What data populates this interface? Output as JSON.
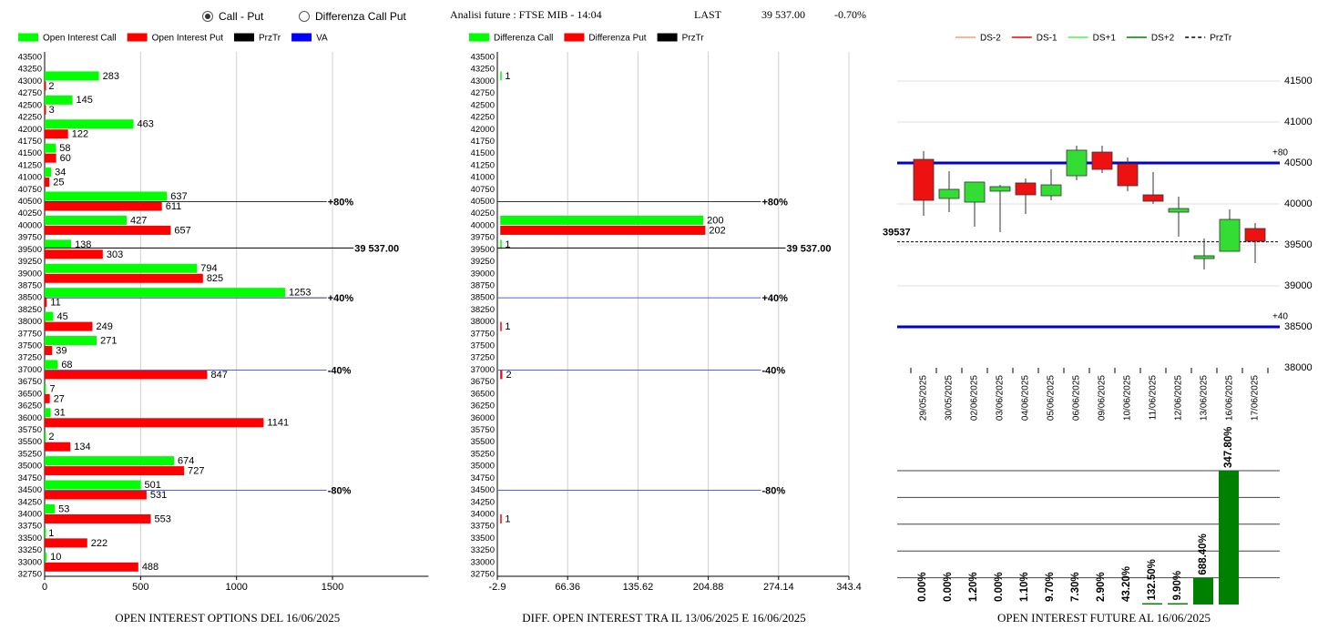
{
  "header": {
    "options": [
      "Call - Put",
      "Differenza Call Put"
    ],
    "selected": 0,
    "title": "Analisi future : FTSE MIB - 14:04",
    "last_label": "LAST",
    "last_value": "39 537.00",
    "change": "-0.70%"
  },
  "chart_data": [
    {
      "type": "hbar",
      "title": "OPEN INTEREST OPTIONS DEL 16/06/2025",
      "categories": [
        43500,
        43250,
        43000,
        42750,
        42500,
        42250,
        42000,
        41750,
        41500,
        41250,
        41000,
        40750,
        40500,
        40250,
        40000,
        39750,
        39500,
        39250,
        39000,
        38750,
        38500,
        38250,
        38000,
        37750,
        37500,
        37250,
        37000,
        36750,
        36500,
        36250,
        36000,
        35750,
        35500,
        35250,
        35000,
        34750,
        34500,
        34250,
        34000,
        33750,
        33500,
        33250,
        33000,
        32750
      ],
      "series": [
        {
          "name": "Open Interest Call",
          "color": "#00ff00",
          "values": [
            null,
            null,
            283,
            null,
            145,
            null,
            463,
            null,
            58,
            null,
            34,
            null,
            637,
            null,
            427,
            null,
            138,
            null,
            794,
            null,
            1253,
            null,
            45,
            null,
            271,
            null,
            68,
            null,
            7,
            null,
            31,
            null,
            2,
            null,
            674,
            null,
            501,
            null,
            53,
            null,
            1,
            null,
            10,
            null
          ]
        },
        {
          "name": "Open Interest Put",
          "color": "#ff0000",
          "values": [
            null,
            null,
            2,
            null,
            3,
            null,
            122,
            null,
            60,
            null,
            25,
            null,
            611,
            null,
            657,
            null,
            303,
            null,
            825,
            null,
            11,
            null,
            249,
            null,
            39,
            null,
            847,
            null,
            27,
            null,
            1141,
            null,
            134,
            null,
            727,
            null,
            531,
            null,
            553,
            null,
            222,
            null,
            488,
            null
          ]
        }
      ],
      "legend_extra": [
        {
          "name": "PrzTr",
          "color": "#000000"
        },
        {
          "name": "VA",
          "color": "#0000ff"
        }
      ],
      "hlines": [
        {
          "value": 40500,
          "label": "+80%",
          "color": "#333333"
        },
        {
          "value": 39537,
          "label": "39 537.00",
          "color": "#000000"
        },
        {
          "value": 38500,
          "label": "+40%",
          "color": "#333366"
        },
        {
          "value": 37000,
          "label": "-40%",
          "color": "#5566cc"
        },
        {
          "value": 34500,
          "label": "-80%",
          "color": "#5566cc"
        }
      ],
      "xlim": [
        0,
        2000
      ],
      "xticks": [
        0,
        500,
        1000,
        1500
      ],
      "grid": true
    },
    {
      "type": "hbar",
      "title": "DIFF. OPEN INTEREST TRA IL 13/06/2025 E 16/06/2025",
      "categories": [
        43500,
        43250,
        43000,
        42750,
        42500,
        42250,
        42000,
        41750,
        41500,
        41250,
        41000,
        40750,
        40500,
        40250,
        40000,
        39750,
        39500,
        39250,
        39000,
        38750,
        38500,
        38250,
        38000,
        37750,
        37500,
        37250,
        37000,
        36750,
        36500,
        36250,
        36000,
        35750,
        35500,
        35250,
        35000,
        34750,
        34500,
        34250,
        34000,
        33750,
        33500,
        33250,
        33000,
        32750
      ],
      "series": [
        {
          "name": "Differenza Call",
          "color": "#00ff00",
          "values": [
            null,
            null,
            1,
            null,
            null,
            null,
            null,
            null,
            null,
            null,
            null,
            null,
            null,
            null,
            200,
            null,
            1,
            null,
            null,
            null,
            null,
            null,
            null,
            null,
            null,
            null,
            null,
            null,
            null,
            null,
            null,
            null,
            null,
            null,
            null,
            null,
            null,
            null,
            null,
            null,
            null,
            null,
            null,
            null
          ]
        },
        {
          "name": "Differenza Put",
          "color": "#ff0000",
          "values": [
            null,
            null,
            null,
            null,
            null,
            null,
            null,
            null,
            null,
            null,
            null,
            null,
            null,
            null,
            202,
            null,
            null,
            null,
            null,
            null,
            null,
            null,
            1,
            null,
            null,
            null,
            2,
            null,
            null,
            null,
            null,
            null,
            null,
            null,
            null,
            null,
            null,
            null,
            1,
            null,
            null,
            null,
            null,
            null
          ]
        }
      ],
      "legend_extra": [
        {
          "name": "PrzTr",
          "color": "#000000"
        }
      ],
      "hlines": [
        {
          "value": 40500,
          "label": "+80%",
          "color": "#333333"
        },
        {
          "value": 39537,
          "label": "39 537.00",
          "color": "#000000"
        },
        {
          "value": 38500,
          "label": "+40%",
          "color": "#5566cc"
        },
        {
          "value": 37000,
          "label": "-40%",
          "color": "#5566cc"
        },
        {
          "value": 34500,
          "label": "-80%",
          "color": "#5566cc"
        }
      ],
      "xlim": [
        -2.9,
        343.4
      ],
      "xticks": [
        -2.9,
        66.36,
        135.62,
        204.88,
        274.14,
        343.4
      ],
      "grid": true
    },
    {
      "type": "candlestick",
      "categories": [
        "29/05/2025",
        "30/05/2025",
        "02/06/2025",
        "03/06/2025",
        "04/06/2025",
        "05/06/2025",
        "06/06/2025",
        "09/06/2025",
        "10/06/2025",
        "11/06/2025",
        "12/06/2025",
        "13/06/2025",
        "16/06/2025",
        "17/06/2025"
      ],
      "open": [
        40544,
        40067,
        40022,
        40156,
        40256,
        40100,
        40344,
        40633,
        40489,
        40111,
        39900,
        39333,
        39422,
        39700
      ],
      "high": [
        40644,
        40400,
        40267,
        40233,
        40311,
        40422,
        40711,
        40711,
        40567,
        40389,
        40089,
        39578,
        39933,
        39767
      ],
      "low": [
        39856,
        39900,
        39722,
        39656,
        39878,
        40044,
        40289,
        40378,
        40156,
        40000,
        39600,
        39200,
        39422,
        39278
      ],
      "close": [
        40044,
        40178,
        40267,
        40211,
        40111,
        40233,
        40656,
        40422,
        40222,
        40033,
        39944,
        39367,
        39811,
        39544
      ],
      "up_color": "#33dd33",
      "down_color": "#ee1111",
      "legend": [
        {
          "name": "DS-2",
          "color": "#f4a070",
          "dash": false
        },
        {
          "name": "DS-1",
          "color": "#ee0000",
          "dash": false
        },
        {
          "name": "DS+1",
          "color": "#55ee55",
          "dash": false
        },
        {
          "name": "DS+2",
          "color": "#008000",
          "dash": false
        },
        {
          "name": "PrzTr",
          "color": "#000000",
          "dash": true
        }
      ],
      "hlines": [
        {
          "value": 40500,
          "label": "+80",
          "color": "#0000cc",
          "dash": false
        },
        {
          "value": 38500,
          "label": "+40",
          "color": "#0000cc",
          "dash": false
        },
        {
          "value": 39537,
          "label": "39537",
          "color": "#000000",
          "dash": true
        }
      ],
      "ylim": [
        38000,
        41700
      ],
      "yticks": [
        38000,
        38500,
        39000,
        39500,
        40000,
        40500,
        41000,
        41500
      ],
      "grid": true
    },
    {
      "type": "bar",
      "title": "OPEN INTEREST FUTURE AL 16/06/2025",
      "values": [
        0,
        0,
        0,
        0,
        0,
        0,
        0,
        0,
        0,
        0.05,
        0.05,
        1,
        5
      ],
      "labels": [
        "0.00%",
        "0.00%",
        "1.20%",
        "0.00%",
        "1.10%",
        "9.70%",
        "7.30%",
        "2.90%",
        "43.20%",
        "132.50%",
        "9.90%",
        "688.40%",
        "347.80%"
      ],
      "color": "#008000",
      "ylim": [
        0,
        5
      ],
      "yticks": [
        1,
        2,
        3,
        4,
        5
      ],
      "grid": true
    }
  ]
}
